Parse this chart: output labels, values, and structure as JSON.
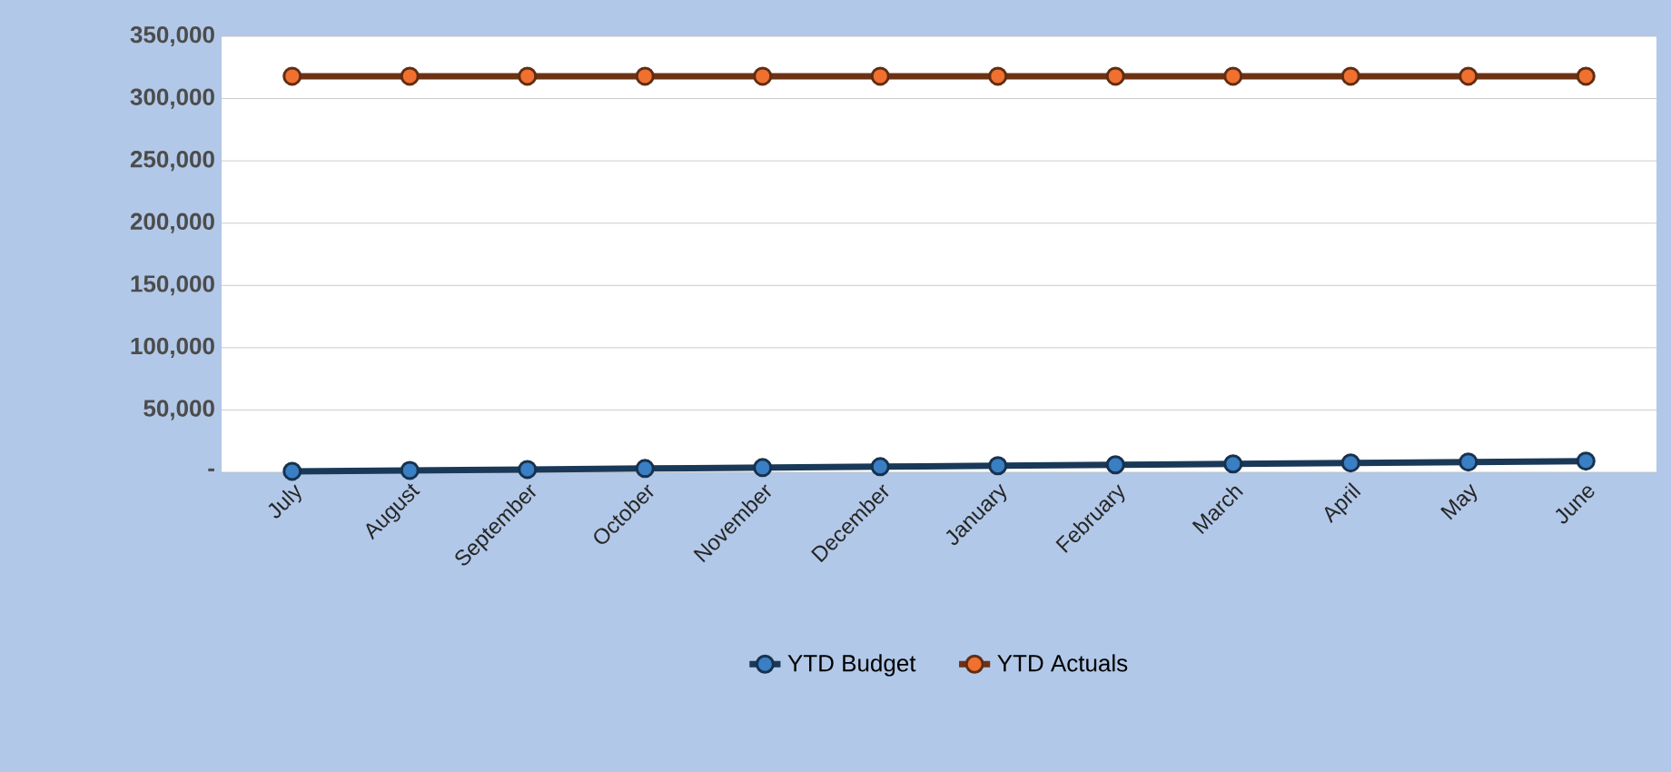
{
  "chart_data": {
    "type": "line",
    "categories": [
      "July",
      "August",
      "September",
      "October",
      "November",
      "December",
      "January",
      "February",
      "March",
      "April",
      "May",
      "June"
    ],
    "series": [
      {
        "name": "YTD Budget",
        "color": "#3a7ec4",
        "values": [
          750,
          1500,
          2250,
          3000,
          3750,
          4500,
          5250,
          6000,
          6750,
          7500,
          8250,
          9000
        ]
      },
      {
        "name": "YTD Actuals",
        "color": "#f07030",
        "values": [
          318000,
          318000,
          318000,
          318000,
          318000,
          318000,
          318000,
          318000,
          318000,
          318000,
          318000,
          318000
        ]
      }
    ],
    "ylim": [
      0,
      350000
    ],
    "yticks": [
      {
        "value": 0,
        "label": "-"
      },
      {
        "value": 50000,
        "label": "50,000"
      },
      {
        "value": 100000,
        "label": "100,000"
      },
      {
        "value": 150000,
        "label": "150,000"
      },
      {
        "value": 200000,
        "label": "200,000"
      },
      {
        "value": 250000,
        "label": "250,000"
      },
      {
        "value": 300000,
        "label": "300,000"
      },
      {
        "value": 350000,
        "label": "350,000"
      }
    ],
    "grid": "y",
    "legend": "bottom",
    "marker": "circle",
    "line_style": "solid"
  }
}
